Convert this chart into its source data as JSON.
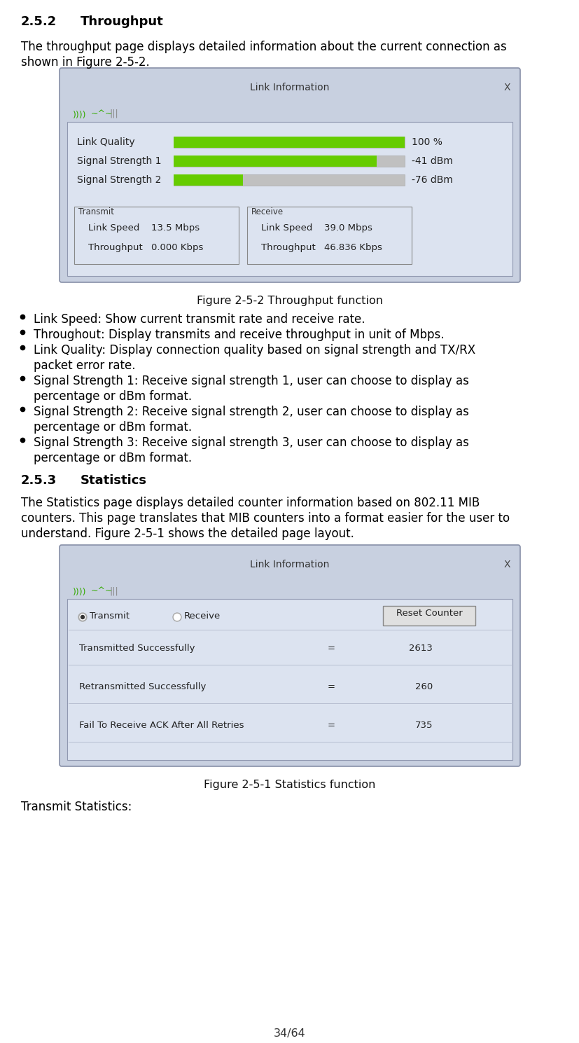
{
  "page_num": "34/64",
  "section_252": "2.5.2",
  "section_252_title": "Throughput",
  "fig_252_caption": "Figure 2-5-2 Throughput function",
  "section_253": "2.5.3",
  "section_253_title": "Statistics",
  "fig_251_caption": "Figure 2-5-1 Statistics function",
  "transmit_stats_label": "Transmit Statistics:",
  "bg_color": "#ffffff",
  "dialog_bg": "#c8d0e0",
  "dialog_inner_bg": "#dce3f0",
  "dialog_border": "#9098b0",
  "dialog_title_text": "Link Information",
  "green_bar": "#66cc00",
  "gray_bar": "#c0c0c0",
  "link_quality_label": "Link Quality",
  "link_quality_value": "100 %",
  "link_quality_fill": 1.0,
  "signal1_label": "Signal Strength 1",
  "signal1_value": "-41 dBm",
  "signal1_fill": 0.88,
  "signal2_label": "Signal Strength 2",
  "signal2_value": "-76 dBm",
  "signal2_fill": 0.3,
  "transmit_link_speed": "13.5 Mbps",
  "transmit_throughput": "0.000 Kbps",
  "receive_link_speed": "39.0 Mbps",
  "receive_throughput": "46.836 Kbps",
  "stats_transmitted": "2613",
  "stats_retransmitted": "260",
  "stats_fail_ack": "735",
  "para_252_line1": "The throughput page displays detailed information about the current connection as",
  "para_252_line2": "shown in Figure 2-5-2.",
  "bullet1": "Link Speed: Show current transmit rate and receive rate.",
  "bullet2": "Throughout: Display transmits and receive throughput in unit of Mbps.",
  "bullet3a": "Link Quality: Display connection quality based on signal strength and TX/RX",
  "bullet3b": "packet error rate.",
  "bullet4a": "Signal Strength 1: Receive signal strength 1, user can choose to display as",
  "bullet4b": "percentage or dBm format.",
  "bullet5a": "Signal Strength 2: Receive signal strength 2, user can choose to display as",
  "bullet5b": "percentage or dBm format.",
  "bullet6a": "Signal Strength 3: Receive signal strength 3, user can choose to display as",
  "bullet6b": "percentage or dBm format.",
  "para_253_line1": "The Statistics page displays detailed counter information based on 802.11 MIB",
  "para_253_line2": "counters. This page translates that MIB counters into a format easier for the user to",
  "para_253_line3": "understand. Figure 2-5-1 shows the detailed page layout."
}
